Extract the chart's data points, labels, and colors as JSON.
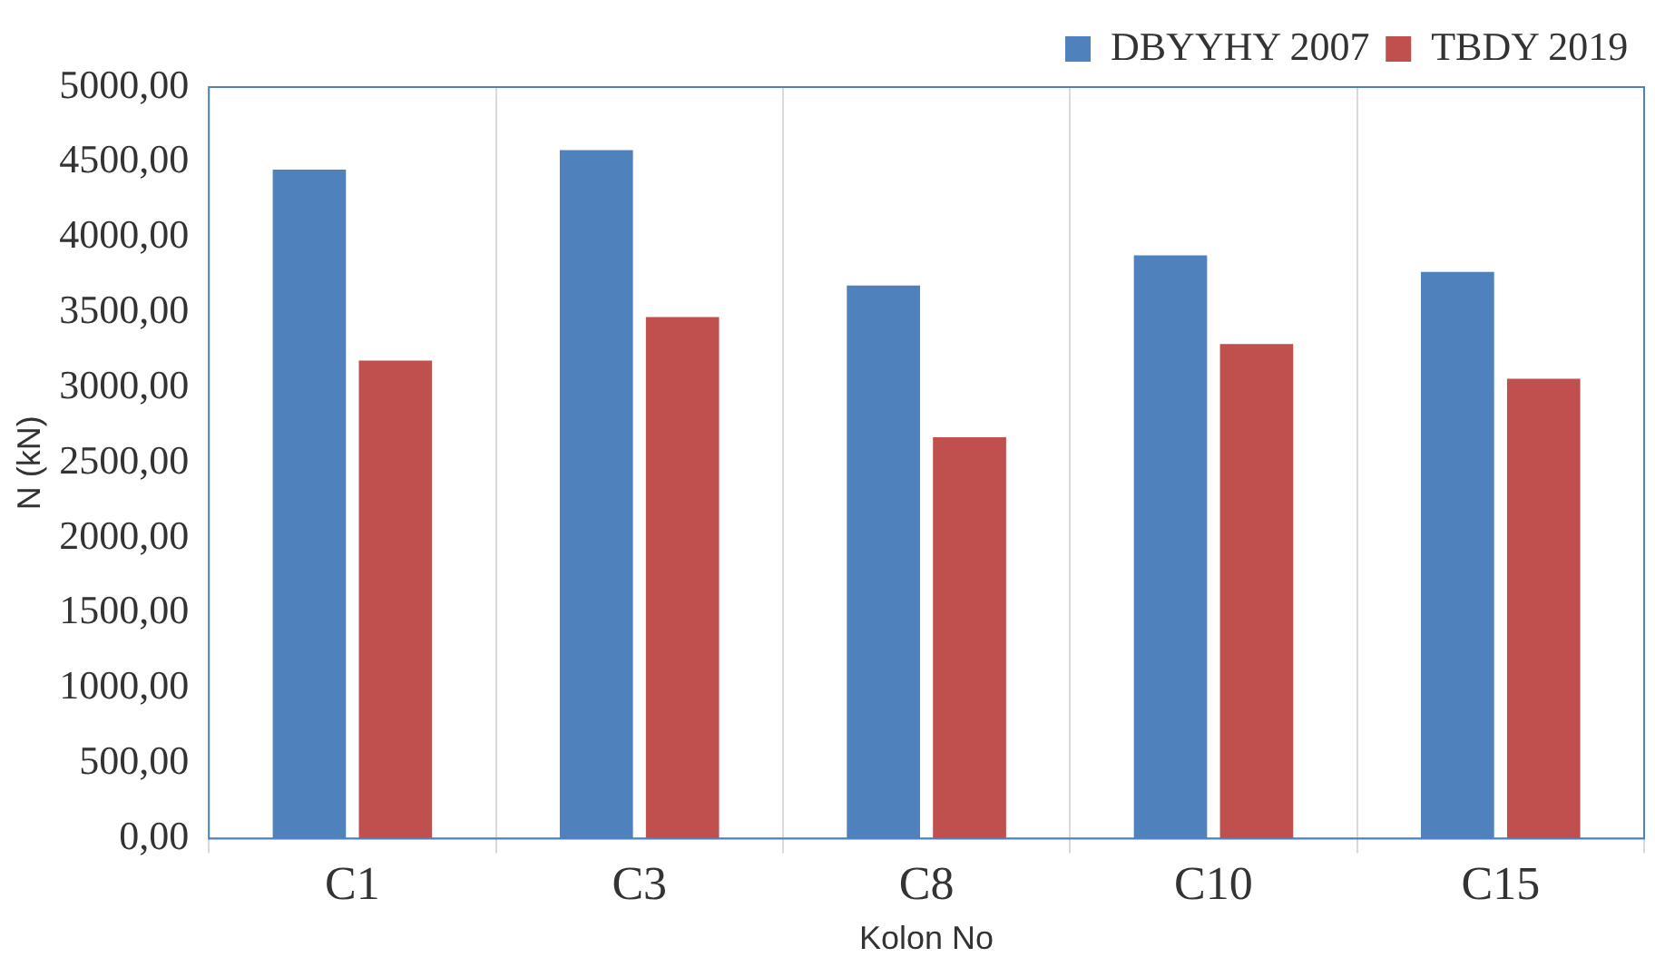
{
  "chart_data": {
    "type": "bar",
    "xlabel": "Kolon No",
    "ylabel": "N (kN)",
    "categories": [
      "C1",
      "C3",
      "C8",
      "C10",
      "C15"
    ],
    "series": [
      {
        "name": "DBYYHY 2007",
        "color": "#4f81bd",
        "values": [
          4450,
          4580,
          3680,
          3880,
          3770
        ]
      },
      {
        "name": "TBDY 2019",
        "color": "#c0504d",
        "values": [
          3180,
          3470,
          2670,
          3290,
          3060
        ]
      }
    ],
    "ylim": [
      0,
      5000
    ],
    "yticks": [
      {
        "value": 0,
        "label": "0,00"
      },
      {
        "value": 500,
        "label": "500,00"
      },
      {
        "value": 1000,
        "label": "1000,00"
      },
      {
        "value": 1500,
        "label": "1500,00"
      },
      {
        "value": 2000,
        "label": "2000,00"
      },
      {
        "value": 2500,
        "label": "2500,00"
      },
      {
        "value": 3000,
        "label": "3000,00"
      },
      {
        "value": 3500,
        "label": "3500,00"
      },
      {
        "value": 4000,
        "label": "4000,00"
      },
      {
        "value": 4500,
        "label": "4500,00"
      },
      {
        "value": 5000,
        "label": "5000,00"
      }
    ],
    "grid": "x",
    "legend": "top right"
  }
}
